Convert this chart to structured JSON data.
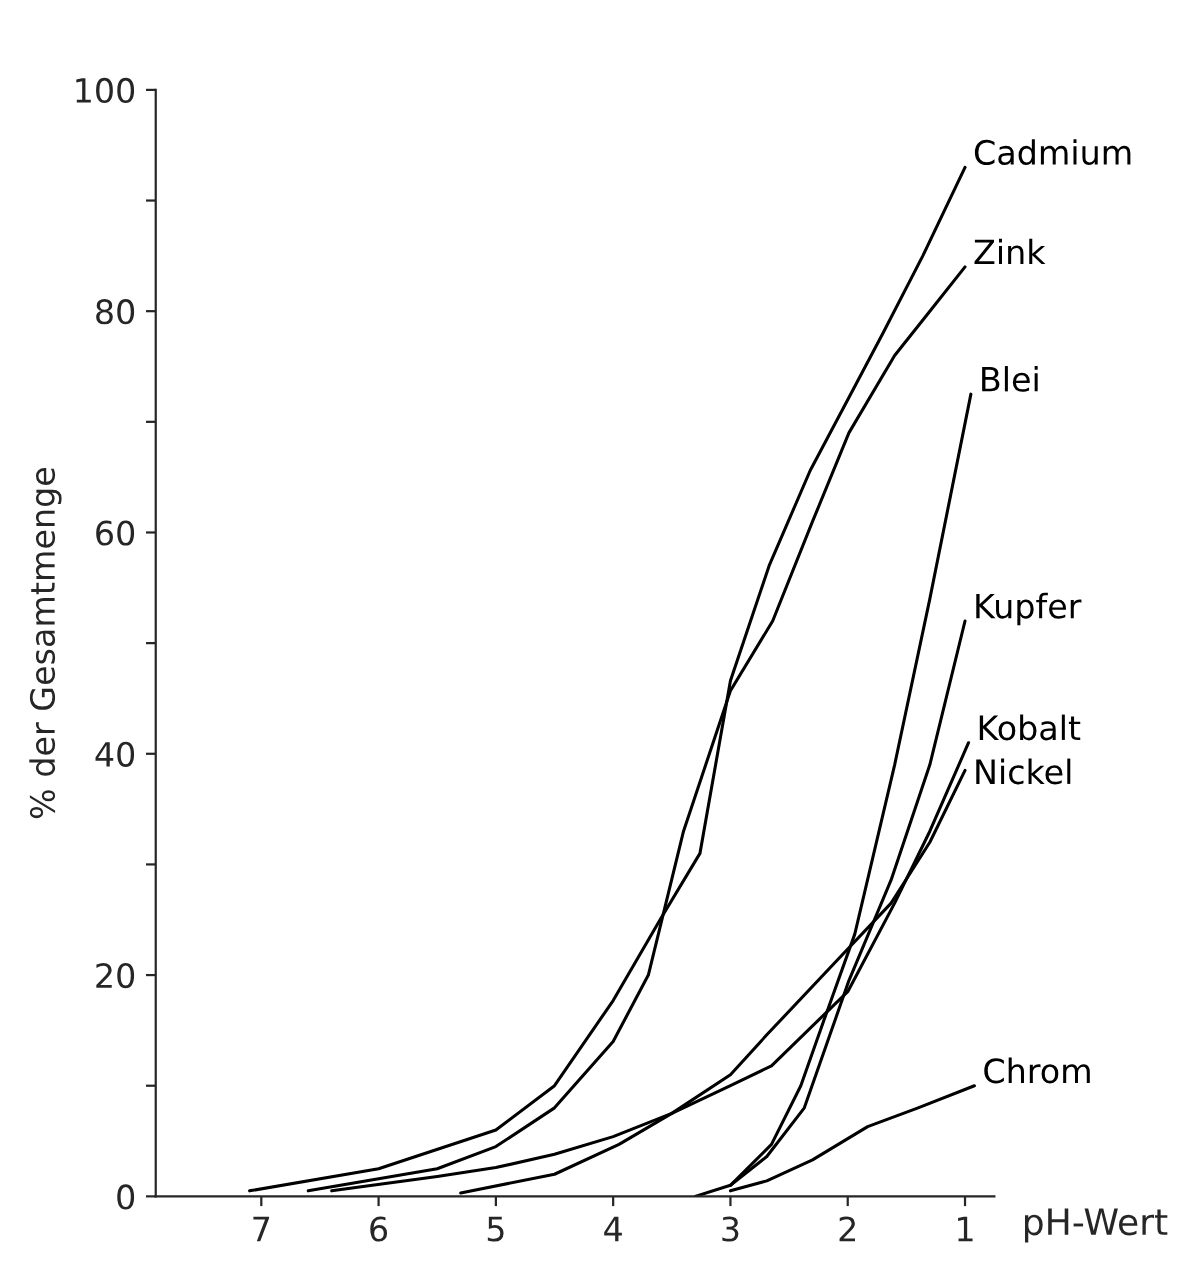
{
  "chart_data": {
    "type": "line",
    "xlabel": "pH-Wert",
    "ylabel": "% der Gesamtmenge",
    "xlim": [
      7.9,
      0.75
    ],
    "xticks": [
      7,
      6,
      5,
      4,
      3,
      2,
      1
    ],
    "ylim": [
      0,
      100
    ],
    "yticks": [
      0,
      {
        "value": 10,
        "label": null
      },
      20,
      {
        "value": 30,
        "label": null
      },
      40,
      {
        "value": 50,
        "label": null
      },
      60,
      {
        "value": 70,
        "label": null
      },
      80,
      {
        "value": 90,
        "label": null
      },
      100
    ],
    "grid": false,
    "legend": false,
    "line_style": "solid",
    "marker": "none",
    "series": [
      {
        "name": "Cadmium",
        "color": "#000000",
        "x": [
          7.1,
          6,
          5,
          4.5,
          4,
          3.6,
          3.26,
          3.0,
          2.67,
          2.32,
          2.0,
          1.7,
          1.36,
          1.0
        ],
        "values": [
          0.5,
          2.5,
          6,
          10,
          17.7,
          25,
          31,
          46.6,
          57,
          65.6,
          72,
          78,
          85,
          93
        ]
      },
      {
        "name": "Zink",
        "color": "#000000",
        "x": [
          6.6,
          5.5,
          5,
          4.5,
          4,
          3.7,
          3.4,
          3.0,
          2.64,
          2.3,
          1.99,
          1.6,
          1.3,
          1.0
        ],
        "values": [
          0.5,
          2.5,
          4.5,
          8,
          14,
          20,
          33,
          45.7,
          52,
          61,
          69,
          76,
          80,
          84
        ]
      },
      {
        "name": "Blei",
        "color": "#000000",
        "x": [
          3.3,
          3.0,
          2.65,
          2.4,
          2.2,
          1.94,
          1.6,
          1.3,
          0.95
        ],
        "values": [
          0,
          1,
          4.7,
          10,
          16,
          23.7,
          39,
          54,
          72.5
        ]
      },
      {
        "name": "Kupfer",
        "color": "#000000",
        "x": [
          3.0,
          2.69,
          2.37,
          1.99,
          1.63,
          1.3,
          1.0
        ],
        "values": [
          1,
          3.6,
          8,
          19.5,
          28.6,
          39,
          52
        ]
      },
      {
        "name": "Kobalt",
        "color": "#000000",
        "x": [
          5.3,
          4.5,
          3.95,
          3.5,
          3.0,
          2.65,
          2.0,
          1.6,
          1.3,
          0.97
        ],
        "values": [
          0.3,
          2,
          4.7,
          7.5,
          10,
          11.8,
          18.5,
          26.5,
          33,
          41
        ]
      },
      {
        "name": "Nickel",
        "color": "#000000",
        "x": [
          6.4,
          5.5,
          5.0,
          4.5,
          4.0,
          3.5,
          3.0,
          2.69,
          2.04,
          1.63,
          1.3,
          1.0
        ],
        "values": [
          0.5,
          1.8,
          2.6,
          3.8,
          5.4,
          7.5,
          11,
          14.6,
          21.9,
          26.5,
          32,
          38.5
        ]
      },
      {
        "name": "Chrom",
        "color": "#000000",
        "x": [
          3.0,
          2.69,
          2.3,
          1.83,
          1.4,
          0.92
        ],
        "values": [
          0.5,
          1.4,
          3.3,
          6.3,
          8,
          10
        ]
      }
    ]
  }
}
